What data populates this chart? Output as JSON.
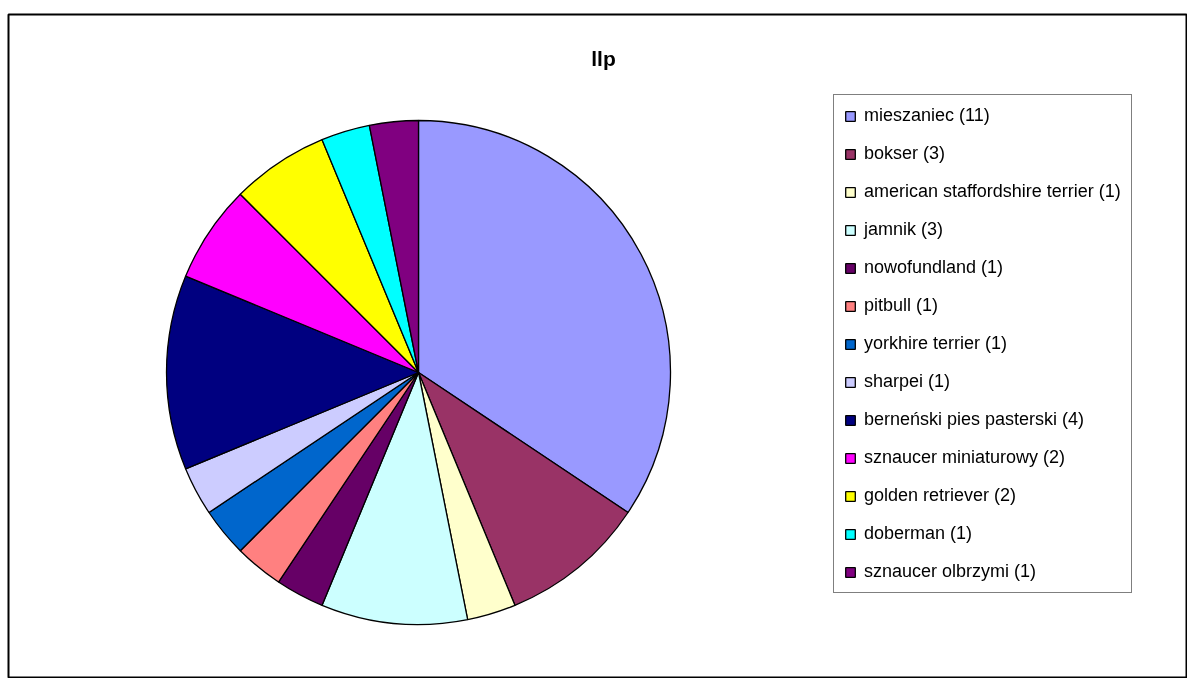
{
  "chart_data": {
    "type": "pie",
    "title": "llp",
    "categories": [
      "mieszaniec (11)",
      "bokser (3)",
      "american staffordshire terrier (1)",
      "jamnik (3)",
      "nowofundland (1)",
      "pitbull (1)",
      "yorkhire terrier (1)",
      "sharpei (1)",
      "berneński pies pasterski (4)",
      "sznaucer miniaturowy (2)",
      "golden retriever (2)",
      "doberman (1)",
      "sznaucer olbrzymi (1)"
    ],
    "values": [
      11,
      3,
      1,
      3,
      1,
      1,
      1,
      1,
      4,
      2,
      2,
      1,
      1
    ],
    "colors": [
      "#9999ff",
      "#993366",
      "#ffffcc",
      "#ccffff",
      "#660066",
      "#ff8080",
      "#0066cc",
      "#ccccff",
      "#000080",
      "#ff00ff",
      "#ffff00",
      "#00ffff",
      "#800080"
    ],
    "legend": "right"
  }
}
